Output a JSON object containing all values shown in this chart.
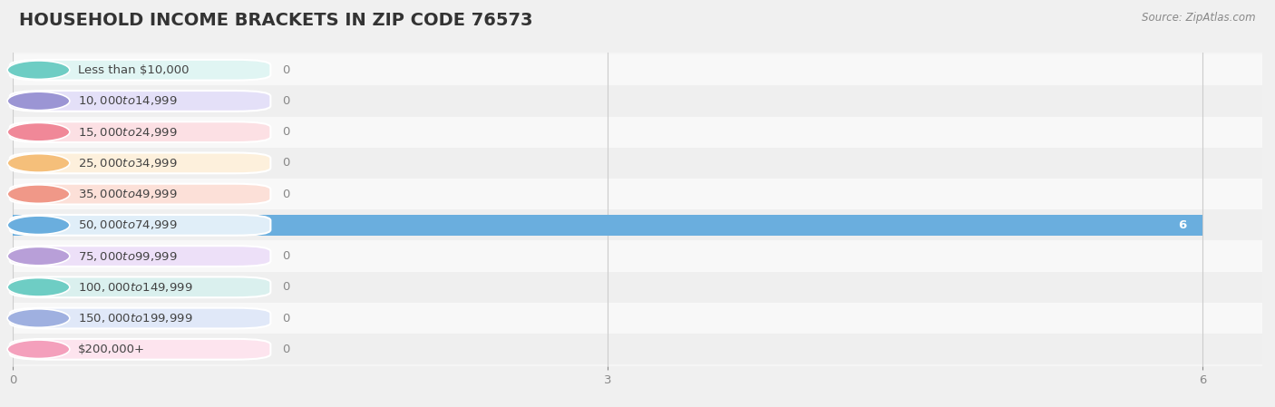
{
  "title": "HOUSEHOLD INCOME BRACKETS IN ZIP CODE 76573",
  "source": "Source: ZipAtlas.com",
  "categories": [
    "Less than $10,000",
    "$10,000 to $14,999",
    "$15,000 to $24,999",
    "$25,000 to $34,999",
    "$35,000 to $49,999",
    "$50,000 to $74,999",
    "$75,000 to $99,999",
    "$100,000 to $149,999",
    "$150,000 to $199,999",
    "$200,000+"
  ],
  "values": [
    0,
    0,
    0,
    0,
    0,
    6,
    0,
    0,
    0,
    0
  ],
  "bar_colors": [
    "#6ecdc4",
    "#9b95d4",
    "#f08898",
    "#f5bf7a",
    "#f09888",
    "#6aaede",
    "#b89fd8",
    "#6ecdc4",
    "#9fb0e0",
    "#f4a0bc"
  ],
  "label_bg_colors": [
    "#e0f5f3",
    "#e4e0f8",
    "#fce0e4",
    "#fdf0dc",
    "#fce0d8",
    "#e0eef8",
    "#ede0f8",
    "#daf0ee",
    "#e0e8f8",
    "#fde4ee"
  ],
  "xlim": [
    0,
    6.3
  ],
  "xticks": [
    0,
    3,
    6
  ],
  "background_color": "#f0f0f0",
  "row_bg_colors": [
    "#f8f8f8",
    "#efefef"
  ],
  "plot_bg_color": "#f5f5f5",
  "title_fontsize": 14,
  "label_fontsize": 9.5,
  "tick_fontsize": 9.5,
  "source_fontsize": 8.5
}
